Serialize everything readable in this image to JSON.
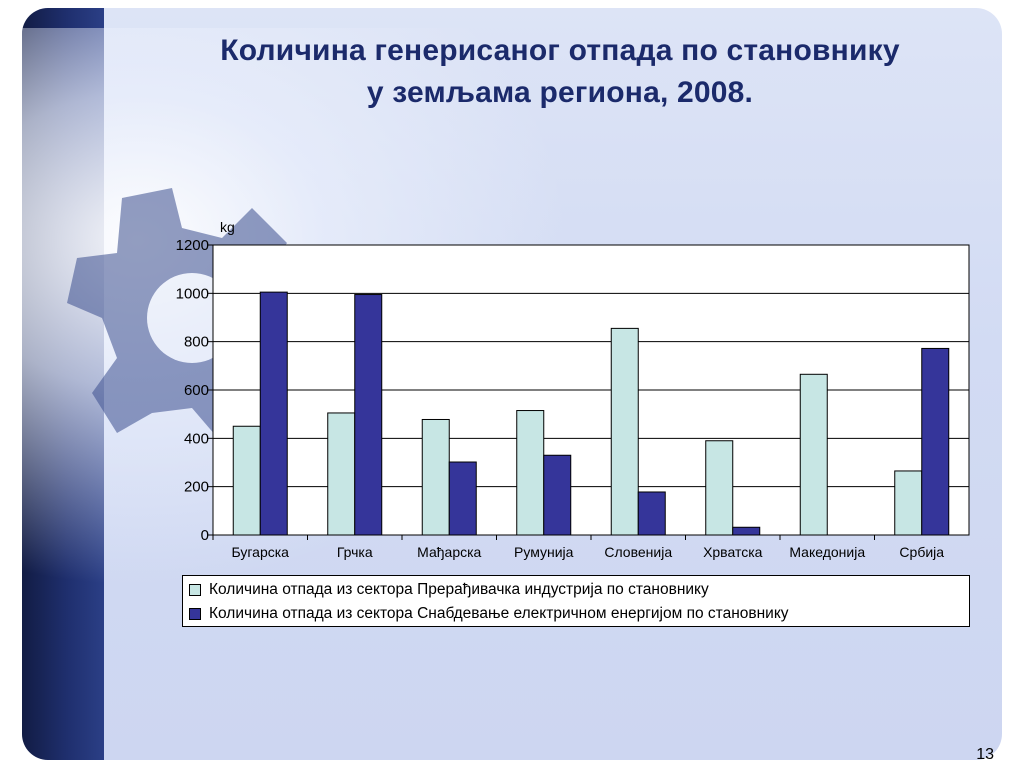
{
  "slide": {
    "title_line1": "Количина генерисаног отпада по становнику",
    "title_line2": "у земљама региона, 2008.",
    "page_number": "13"
  },
  "colors": {
    "series_processing": "#c7e6e4",
    "series_energy": "#35359a",
    "axis": "#000000",
    "grid": "#000000"
  },
  "chart_data": {
    "type": "bar",
    "title": "",
    "xlabel": "",
    "ylabel": "kg",
    "ylim": [
      0,
      1200
    ],
    "yticks": [
      0,
      200,
      400,
      600,
      800,
      1000,
      1200
    ],
    "grid": true,
    "legend_position": "bottom",
    "categories": [
      "Бугарска",
      "Грчка",
      "Мађарска",
      "Румунија",
      "Словенија",
      "Хрватска",
      "Македонија",
      "Србија"
    ],
    "series": [
      {
        "name": "Количина отпада из сектора Прерађивачка индустрија по становнику",
        "color": "#c7e6e4",
        "values": [
          450,
          505,
          478,
          515,
          855,
          390,
          665,
          265
        ]
      },
      {
        "name": "Количина отпада из сектора Снабдевање електричном енергијом по становнику",
        "color": "#35359a",
        "values": [
          1005,
          995,
          302,
          330,
          178,
          32,
          0,
          772
        ]
      }
    ]
  }
}
